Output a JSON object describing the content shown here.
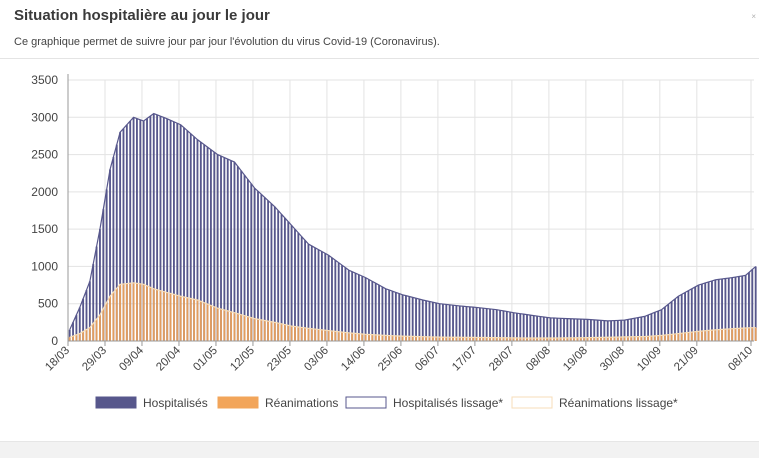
{
  "header": {
    "title": "Situation hospitalière au jour le jour",
    "subtitle": "Ce graphique permet de suivre jour par jour l'évolution du virus Covid-19 (Coronavirus).",
    "close_glyph": "×"
  },
  "colors": {
    "hospitalises": "#57578c",
    "reanimations": "#f2a55a",
    "hospitalises_lissage": "#57578c",
    "reanimations_lissage": "#f7ddb8",
    "grid": "#e3e3e3"
  },
  "chart_data": {
    "type": "bar",
    "start_date": "2020-03-18",
    "end_date": "2020-10-08",
    "ylim": [
      0,
      3500
    ],
    "yticks": [
      0,
      500,
      1000,
      1500,
      2000,
      2500,
      3000,
      3500
    ],
    "xticks": [
      "18/03",
      "29/03",
      "09/04",
      "20/04",
      "01/05",
      "12/05",
      "23/05",
      "03/06",
      "14/06",
      "25/06",
      "06/07",
      "17/07",
      "28/07",
      "08/08",
      "19/08",
      "30/08",
      "10/09",
      "21/09",
      "08/10"
    ],
    "grid": true,
    "legend_position": "bottom",
    "series": [
      {
        "name": "Hospitalisés",
        "kind": "bar",
        "x": [
          "2020-03-18",
          "2020-03-21",
          "2020-03-24",
          "2020-03-27",
          "2020-03-30",
          "2020-04-02",
          "2020-04-06",
          "2020-04-09",
          "2020-04-12",
          "2020-04-16",
          "2020-04-20",
          "2020-04-25",
          "2020-05-01",
          "2020-05-06",
          "2020-05-12",
          "2020-05-18",
          "2020-05-23",
          "2020-05-28",
          "2020-06-03",
          "2020-06-09",
          "2020-06-14",
          "2020-06-20",
          "2020-06-25",
          "2020-07-01",
          "2020-07-06",
          "2020-07-12",
          "2020-07-17",
          "2020-07-23",
          "2020-07-28",
          "2020-08-03",
          "2020-08-08",
          "2020-08-13",
          "2020-08-19",
          "2020-08-25",
          "2020-08-30",
          "2020-09-05",
          "2020-09-10",
          "2020-09-15",
          "2020-09-21",
          "2020-09-26",
          "2020-10-01",
          "2020-10-05",
          "2020-10-08"
        ],
        "values": [
          150,
          450,
          800,
          1500,
          2300,
          2800,
          3000,
          2950,
          3050,
          2980,
          2900,
          2700,
          2500,
          2400,
          2050,
          1800,
          1550,
          1300,
          1150,
          950,
          850,
          700,
          620,
          550,
          500,
          470,
          450,
          420,
          380,
          340,
          310,
          300,
          290,
          270,
          280,
          330,
          420,
          600,
          750,
          820,
          850,
          880,
          1000
        ]
      },
      {
        "name": "Réanimations",
        "kind": "bar",
        "x": [
          "2020-03-18",
          "2020-03-21",
          "2020-03-24",
          "2020-03-27",
          "2020-03-30",
          "2020-04-02",
          "2020-04-06",
          "2020-04-09",
          "2020-04-12",
          "2020-04-16",
          "2020-04-20",
          "2020-04-25",
          "2020-05-01",
          "2020-05-06",
          "2020-05-12",
          "2020-05-18",
          "2020-05-23",
          "2020-05-28",
          "2020-06-03",
          "2020-06-09",
          "2020-06-14",
          "2020-06-20",
          "2020-06-25",
          "2020-07-01",
          "2020-07-06",
          "2020-07-12",
          "2020-07-17",
          "2020-07-23",
          "2020-07-28",
          "2020-08-03",
          "2020-08-08",
          "2020-08-13",
          "2020-08-19",
          "2020-08-25",
          "2020-08-30",
          "2020-09-05",
          "2020-09-10",
          "2020-09-15",
          "2020-09-21",
          "2020-09-26",
          "2020-10-01",
          "2020-10-05",
          "2020-10-08"
        ],
        "values": [
          50,
          100,
          180,
          350,
          600,
          760,
          780,
          760,
          700,
          650,
          600,
          550,
          440,
          380,
          300,
          250,
          200,
          170,
          140,
          110,
          90,
          75,
          65,
          58,
          52,
          50,
          48,
          45,
          42,
          40,
          40,
          42,
          45,
          50,
          55,
          60,
          75,
          100,
          130,
          150,
          165,
          175,
          180
        ]
      },
      {
        "name": "Hospitalisés lissage*",
        "kind": "line",
        "same_as": "Hospitalisés"
      },
      {
        "name": "Réanimations lissage*",
        "kind": "line",
        "same_as": "Réanimations"
      }
    ]
  }
}
